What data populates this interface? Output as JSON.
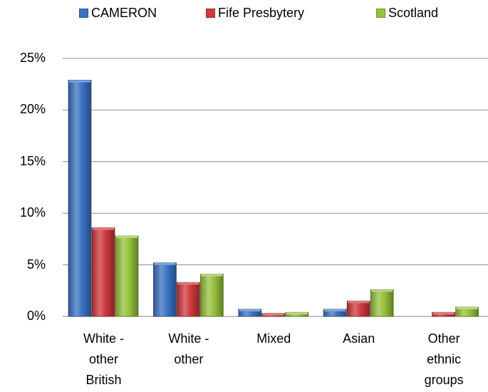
{
  "chart_data": {
    "type": "bar",
    "categories": [
      "White -\nother\nBritish",
      "White -\nother",
      "Mixed",
      "Asian",
      "Other\nethnic\ngroups"
    ],
    "series": [
      {
        "name": "CAMERON",
        "values": [
          22.9,
          5.2,
          0.7,
          0.7,
          0.0
        ],
        "color": "#3a73c4"
      },
      {
        "name": "Fife Presbytery",
        "values": [
          8.6,
          3.3,
          0.3,
          1.5,
          0.4
        ],
        "color": "#d0393d"
      },
      {
        "name": "Scotland",
        "values": [
          7.8,
          4.1,
          0.4,
          2.6,
          0.9
        ],
        "color": "#96c23c"
      }
    ],
    "ylim": [
      0,
      25
    ],
    "yticks": [
      "0%",
      "5%",
      "10%",
      "15%",
      "20%",
      "25%"
    ],
    "ytick_values": [
      0,
      5,
      10,
      15,
      20,
      25
    ],
    "grid": true,
    "legend": "top",
    "title": "",
    "xlabel": "",
    "ylabel": ""
  }
}
